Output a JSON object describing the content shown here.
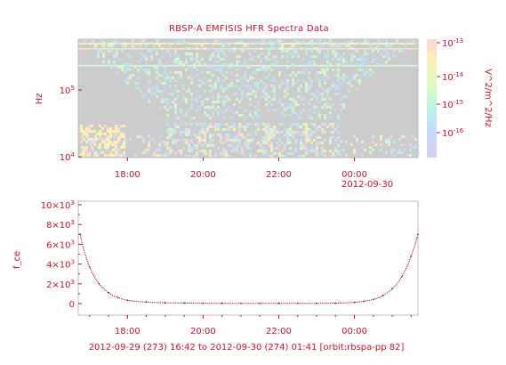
{
  "chart_data": [
    {
      "type": "heatmap",
      "title": "RBSP-A EMFISIS HFR Spectra Data",
      "ylabel": "Hz",
      "ylog": true,
      "yticks": [
        "10^4",
        "10^5"
      ],
      "xticks": [
        "18:00",
        "20:00",
        "22:00",
        "00:00"
      ],
      "xtick_sub": "2012-09-30",
      "xlim": [
        "2012-09-29 16:42",
        "2012-09-30 01:41"
      ],
      "colorbar": {
        "label": "V^2/m^2/Hz",
        "log": true,
        "ticks": [
          "10^-13",
          "10^-14",
          "10^-15",
          "10^-16"
        ],
        "colors": [
          "#ffd6d6",
          "#fff2b0",
          "#d8ffc8",
          "#b8f0e8",
          "#c8d8ff",
          "#d0d0f0"
        ]
      },
      "background_color": "#cccccc"
    },
    {
      "type": "line",
      "title": "",
      "ylabel": "f_ce",
      "yticks": [
        "0",
        "2×10^3",
        "4×10^3",
        "6×10^3",
        "8×10^3",
        "10×10^3"
      ],
      "ylim": [
        0,
        10000
      ],
      "xticks": [
        "18:00",
        "20:00",
        "22:00",
        "00:00"
      ],
      "x_hours": [
        16.75,
        17.0,
        17.25,
        17.5,
        17.75,
        18.0,
        18.5,
        19.0,
        19.5,
        20.0,
        20.5,
        21.0,
        21.5,
        22.0,
        22.5,
        23.0,
        23.5,
        24.0,
        24.25,
        24.5,
        24.75,
        25.0,
        25.25,
        25.5,
        25.68
      ],
      "values": [
        7000,
        3700,
        2000,
        1100,
        600,
        330,
        150,
        80,
        50,
        35,
        25,
        20,
        18,
        18,
        20,
        28,
        45,
        120,
        230,
        420,
        800,
        1500,
        2700,
        4800,
        7000
      ],
      "color": "#a0101e"
    }
  ],
  "footer": "2012-09-29 (273) 16:42 to 2012-09-30 (274) 01:41 [orbit:rbspa-pp 82]"
}
